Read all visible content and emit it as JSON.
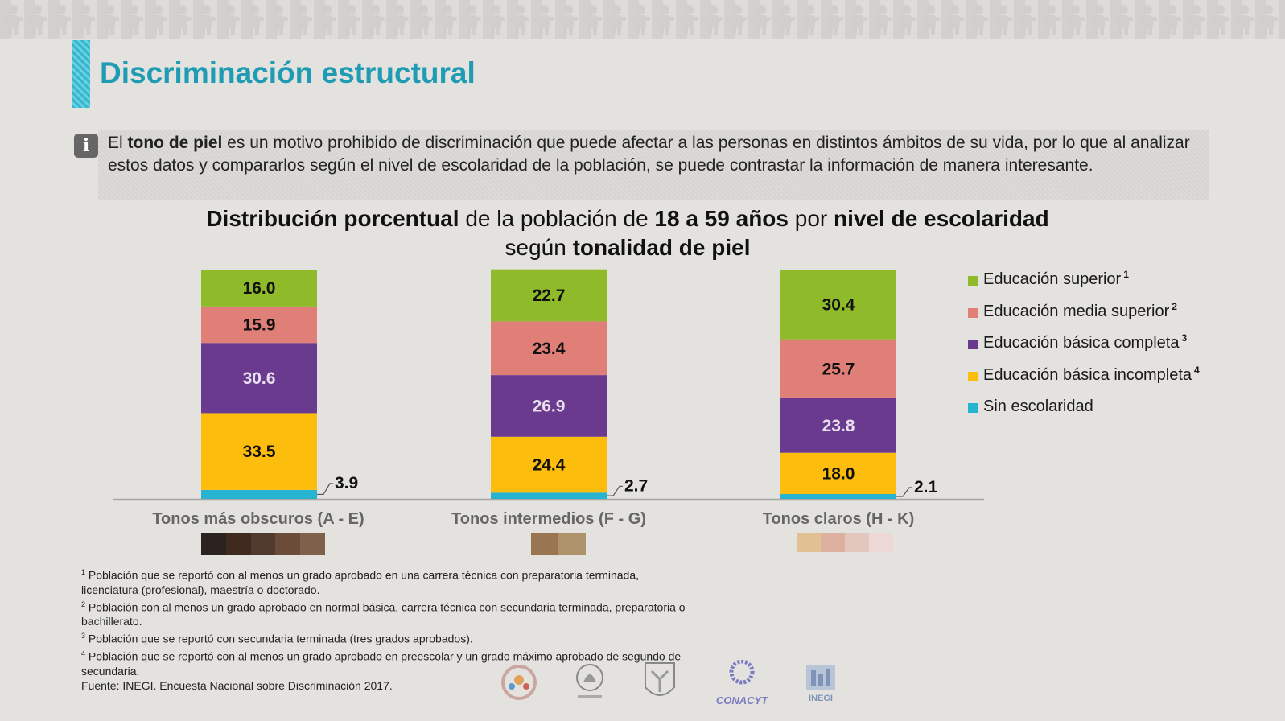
{
  "page": {
    "title": "Discriminación estructural",
    "intro": {
      "prefix": "El ",
      "bold": "tono de piel",
      "rest": " es un motivo prohibido de discriminación que puede afectar a las personas en distintos ámbitos de su vida, por lo que al analizar estos datos y compararlos según el nivel de escolaridad de la población, se puede contrastar la información de manera interesante."
    },
    "info_icon_glyph": "i"
  },
  "chart_title": {
    "p1": "Distribución porcentual",
    "p2": " de la población de ",
    "p3": "18 a 59 años",
    "p4": " por ",
    "p5": "nivel de escolaridad",
    "p6": " según ",
    "p7": "tonalidad de piel"
  },
  "chart_data": {
    "type": "bar",
    "stacked": true,
    "categories": [
      "Tonos más obscuros (A - E)",
      "Tonos intermedios (F - G)",
      "Tonos claros (H - K)"
    ],
    "series": [
      {
        "name": "Sin escolaridad",
        "sup": "",
        "color": "#27b4d1",
        "label_color": "#111111",
        "values": [
          3.9,
          2.7,
          2.1
        ],
        "value_labels": [
          "3.9",
          "2.7",
          "2.1"
        ]
      },
      {
        "name": "Educación básica incompleta",
        "sup": "4",
        "color": "#fcbd0c",
        "label_color": "#111111",
        "values": [
          33.5,
          24.4,
          18.0
        ],
        "value_labels": [
          "33.5",
          "24.4",
          "18.0"
        ]
      },
      {
        "name": "Educación básica completa",
        "sup": "3",
        "color": "#6a3a8f",
        "label_color": "#e8e0ee",
        "values": [
          30.6,
          26.9,
          23.8
        ],
        "value_labels": [
          "30.6",
          "26.9",
          "23.8"
        ]
      },
      {
        "name": "Educación media superior",
        "sup": "2",
        "color": "#e07e78",
        "label_color": "#111111",
        "values": [
          15.9,
          23.4,
          25.7
        ],
        "value_labels": [
          "15.9",
          "23.4",
          "25.7"
        ]
      },
      {
        "name": "Educación superior",
        "sup": "1",
        "color": "#8fba2a",
        "label_color": "#111111",
        "values": [
          16.0,
          22.7,
          30.4
        ],
        "value_labels": [
          "16.0",
          "22.7",
          "30.4"
        ]
      }
    ],
    "ylim": [
      0,
      100
    ],
    "legend_order": [
      4,
      3,
      2,
      1,
      0
    ],
    "skin_swatches": [
      [
        "#2b2320",
        "#3e2a1e",
        "#503a2d",
        "#6b4c38",
        "#7f6049"
      ],
      [
        "#997551",
        "#ad926c"
      ],
      [
        "#dfc193",
        "#ddb0a0",
        "#e3c7bd",
        "#ecd9d6"
      ]
    ]
  },
  "footnotes": [
    {
      "n": "1",
      "text": " Población que se reportó con al menos un grado aprobado en una carrera técnica con preparatoria terminada, licenciatura (profesional), maestría o doctorado."
    },
    {
      "n": "2",
      "text": " Población con al menos un grado aprobado en normal básica, carrera técnica con secundaria terminada, preparatoria o bachillerato."
    },
    {
      "n": "3",
      "text": " Población que se reportó con secundaria terminada (tres grados aprobados)."
    },
    {
      "n": "4",
      "text": " Población que se reportó con al menos un grado aprobado en preescolar y un grado máximo aprobado de segundo de secundaria."
    }
  ],
  "source": "Fuente: INEGI. Encuesta Nacional sobre Discriminación 2017.",
  "logos": {
    "conacyt": "CONACYT",
    "inegi": "INEGI"
  }
}
